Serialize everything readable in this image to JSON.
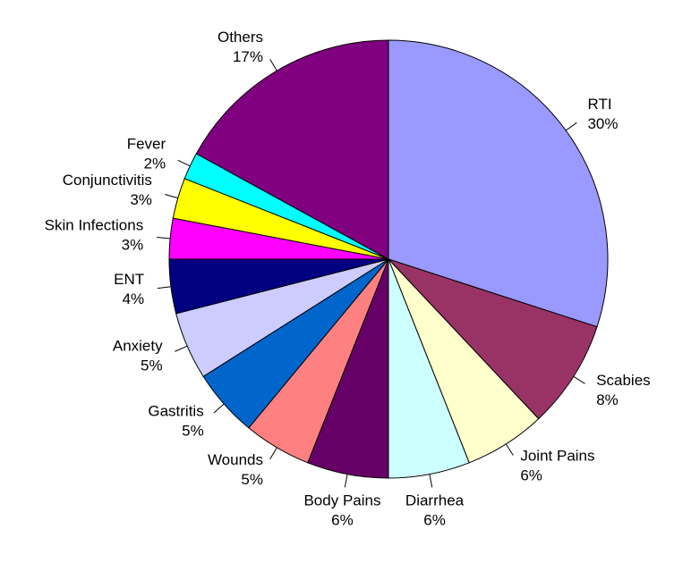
{
  "chart_data": {
    "type": "pie",
    "categories": [
      "RTI",
      "Scabies",
      "Joint Pains",
      "Diarrhea",
      "Body Pains",
      "Wounds",
      "Gastritis",
      "Anxiety",
      "ENT",
      "Skin Infections",
      "Conjunctivitis",
      "Fever",
      "Others"
    ],
    "values": [
      30,
      8,
      6,
      6,
      6,
      5,
      5,
      5,
      4,
      3,
      3,
      2,
      17
    ],
    "value_labels": [
      "30%",
      "8%",
      "6%",
      "6%",
      "6%",
      "5%",
      "5%",
      "5%",
      "4%",
      "3%",
      "3%",
      "2%",
      "17%"
    ],
    "colors": [
      "#9999ff",
      "#993366",
      "#ffffcc",
      "#ccffff",
      "#660066",
      "#ff8080",
      "#0066cc",
      "#ccccff",
      "#000080",
      "#ff00ff",
      "#ffff00",
      "#00ffff",
      "#800080"
    ]
  }
}
